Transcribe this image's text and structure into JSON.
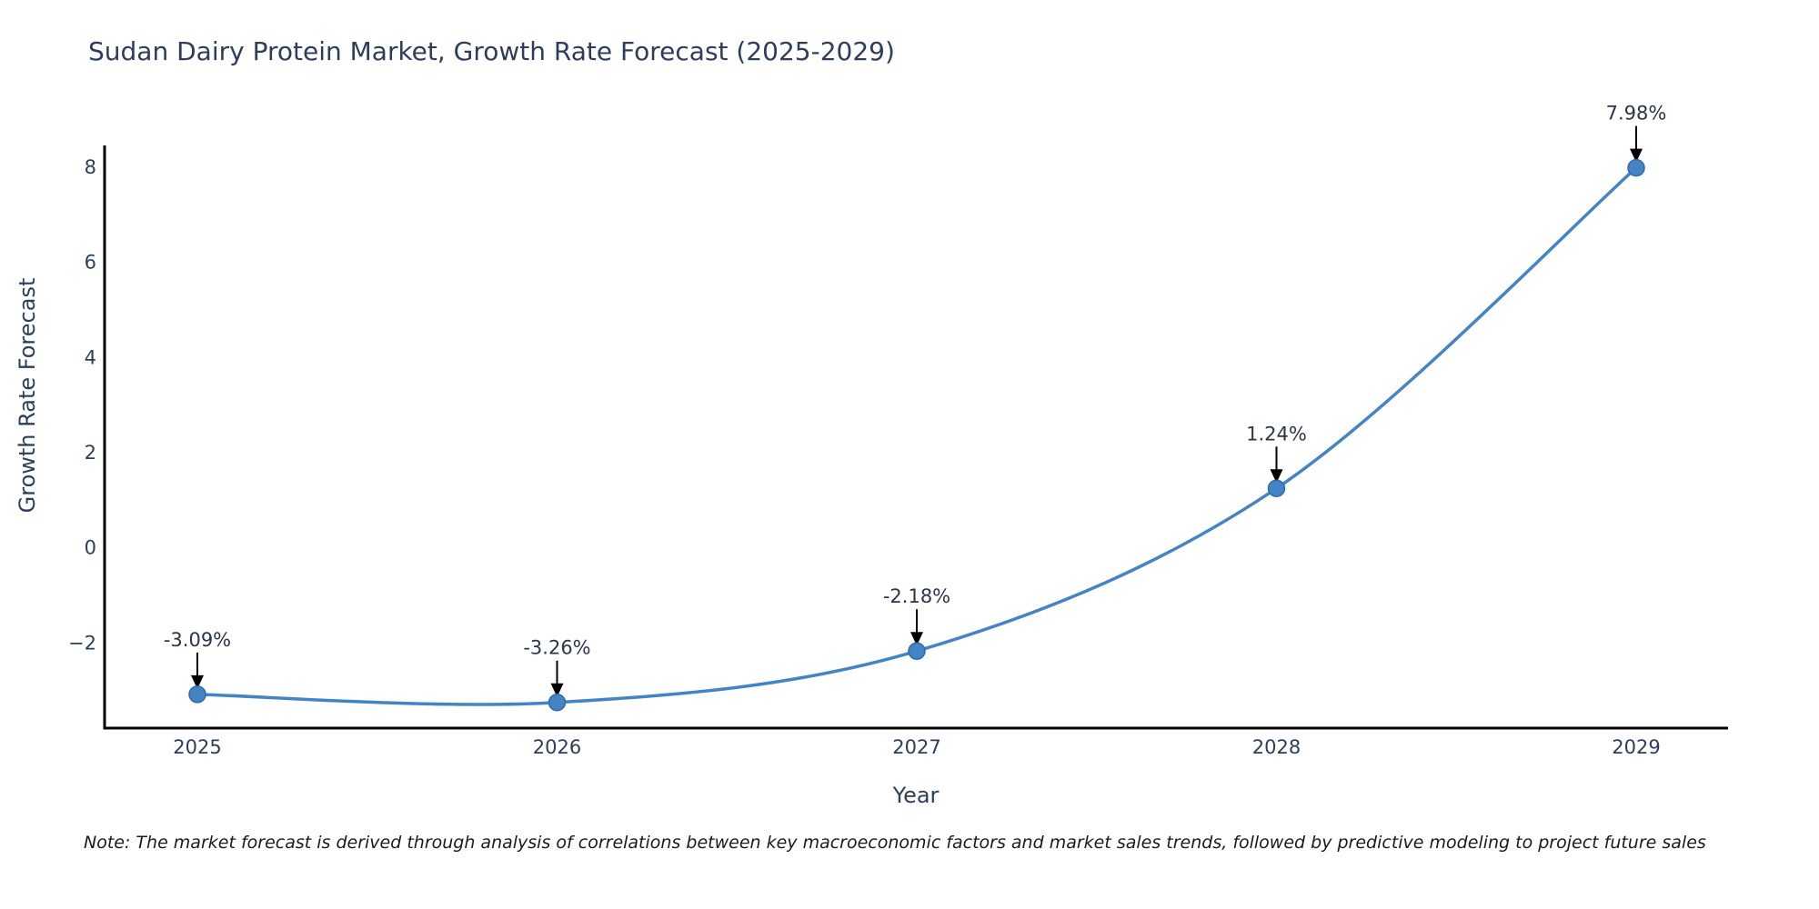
{
  "chart": {
    "title": "Sudan Dairy Protein Market, Growth Rate Forecast (2025-2029)",
    "xlabel": "Year",
    "ylabel": "Growth Rate Forecast",
    "note": "Note: The market forecast is derived through analysis of correlations between key macroeconomic factors and market sales trends, followed by predictive modeling to project future sales"
  },
  "chart_data": {
    "type": "line",
    "title": "Sudan Dairy Protein Market, Growth Rate Forecast (2025-2029)",
    "xlabel": "Year",
    "ylabel": "Growth Rate Forecast",
    "x": [
      2025,
      2026,
      2027,
      2028,
      2029
    ],
    "xtick_labels": [
      "2025",
      "2026",
      "2027",
      "2028",
      "2029"
    ],
    "series": [
      {
        "name": "Growth Rate Forecast",
        "values": [
          -3.09,
          -3.26,
          -2.18,
          1.24,
          7.98
        ]
      }
    ],
    "point_labels": [
      "-3.09%",
      "-3.26%",
      "-2.18%",
      "1.24%",
      "7.98%"
    ],
    "ytick_values": [
      8,
      6,
      4,
      2,
      0,
      -2
    ],
    "ytick_labels": [
      "8",
      "6",
      "4",
      "2",
      "0",
      "−2"
    ],
    "ylim": [
      -3.8,
      8.45
    ],
    "grid": false,
    "legend": "none",
    "line_color": "#4584c4",
    "marker_color": "#4584c4",
    "marker_edge_color": "#2e6da4",
    "arrow_color": "#000000",
    "axis_color": "#000000",
    "text_color": "#2c3e5c"
  }
}
